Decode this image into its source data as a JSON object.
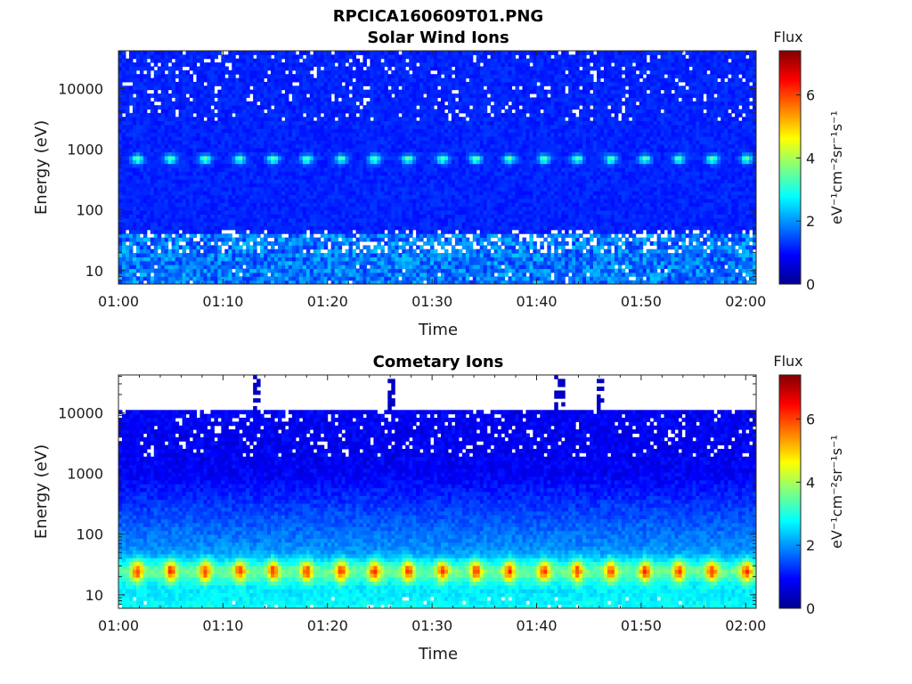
{
  "figure": {
    "title": "RPCICA160609T01.PNG"
  },
  "chart_data": [
    {
      "type": "heatmap",
      "title": "Solar Wind Ions",
      "xlabel": "Time",
      "ylabel": "Energy (eV)",
      "x_ticks": [
        "01:00",
        "01:10",
        "01:20",
        "01:30",
        "01:40",
        "01:50",
        "02:00"
      ],
      "x_range_minutes": [
        0,
        61
      ],
      "y_scale": "log",
      "y_ticks": [
        10,
        100,
        1000,
        10000
      ],
      "y_tick_labels": [
        "10",
        "100",
        "1000",
        "10000"
      ],
      "y_range": [
        6,
        42000
      ],
      "colorbar": {
        "label": "Flux",
        "unit_label": "eV⁻¹cm⁻²sr⁻¹s⁻¹",
        "range": [
          0,
          7.4
        ],
        "ticks": [
          0,
          2,
          4,
          6
        ],
        "colormap": "jet"
      },
      "features": {
        "background_flux": 1.0,
        "peak_energy_ev": 700,
        "peak_flux": 3.4,
        "low_energy_flux": 2.0,
        "gap_energy_ev": 200,
        "pulse_period_min": 3.2,
        "pulse_times_min": [
          1.8,
          5.0,
          8.3,
          11.6,
          14.8,
          18.0,
          21.3,
          24.5,
          27.7,
          31.0,
          34.2,
          37.4,
          40.7,
          43.9,
          47.1,
          50.4,
          53.6,
          56.8,
          60.1
        ]
      }
    },
    {
      "type": "heatmap",
      "title": "Cometary Ions",
      "xlabel": "Time",
      "ylabel": "Energy (eV)",
      "x_ticks": [
        "01:00",
        "01:10",
        "01:20",
        "01:30",
        "01:40",
        "01:50",
        "02:00"
      ],
      "x_range_minutes": [
        0,
        61
      ],
      "y_scale": "log",
      "y_ticks": [
        10,
        100,
        1000,
        10000
      ],
      "y_tick_labels": [
        "10",
        "100",
        "1000",
        "10000"
      ],
      "y_range": [
        6,
        42000
      ],
      "colorbar": {
        "label": "Flux",
        "unit_label": "eV⁻¹cm⁻²sr⁻¹s⁻¹",
        "range": [
          0,
          7.4
        ],
        "ticks": [
          0,
          2,
          4,
          6
        ],
        "colormap": "jet"
      },
      "features": {
        "background_flux": 0.6,
        "peak_energy_ev": 25,
        "peak_flux": 5.6,
        "data_ceiling_ev": 11000,
        "high_energy_spike_times_min": [
          13.1,
          26.2,
          42.2,
          46.1
        ],
        "pulse_period_min": 3.2,
        "pulse_times_min": [
          1.8,
          5.0,
          8.3,
          11.6,
          14.8,
          18.0,
          21.3,
          24.5,
          27.7,
          31.0,
          34.2,
          37.4,
          40.7,
          43.9,
          47.1,
          50.4,
          53.6,
          56.8,
          60.1
        ]
      }
    }
  ]
}
